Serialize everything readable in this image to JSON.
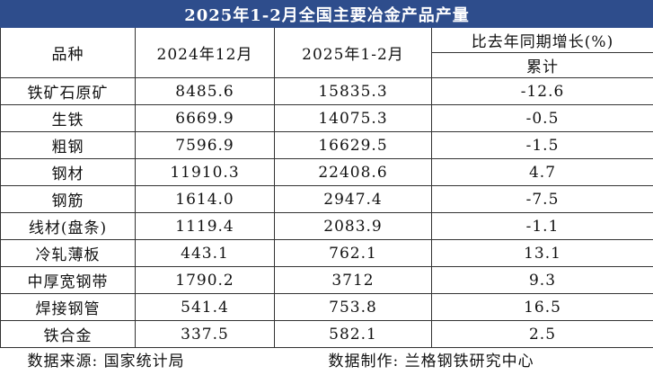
{
  "header": {
    "title": "2025年1-2月全国主要冶金产品产量"
  },
  "table": {
    "columns": [
      "品种",
      "2024年12月",
      "2025年1-2月",
      "比去年同期增长(%)"
    ],
    "subcolumn": "累计",
    "rows": [
      [
        "铁矿石原矿",
        "8485.6",
        "15835.3",
        "-12.6"
      ],
      [
        "生铁",
        "6669.9",
        "14075.3",
        "-0.5"
      ],
      [
        "粗钢",
        "7596.9",
        "16629.5",
        "-1.5"
      ],
      [
        "钢材",
        "11910.3",
        "22408.6",
        "4.7"
      ],
      [
        "钢筋",
        "1614.0",
        "2947.4",
        "-7.5"
      ],
      [
        "线材(盘条)",
        "1119.4",
        "2083.9",
        "-1.1"
      ],
      [
        "冷轧薄板",
        "443.1",
        "762.1",
        "13.1"
      ],
      [
        "中厚宽钢带",
        "1790.2",
        "3712",
        "9.3"
      ],
      [
        "焊接钢管",
        "541.4",
        "753.8",
        "16.5"
      ],
      [
        "铁合金",
        "337.5",
        "582.1",
        "2.5"
      ]
    ]
  },
  "footer": {
    "source": "数据来源: 国家统计局",
    "producer": "数据制作: 兰格钢铁研究中心"
  }
}
